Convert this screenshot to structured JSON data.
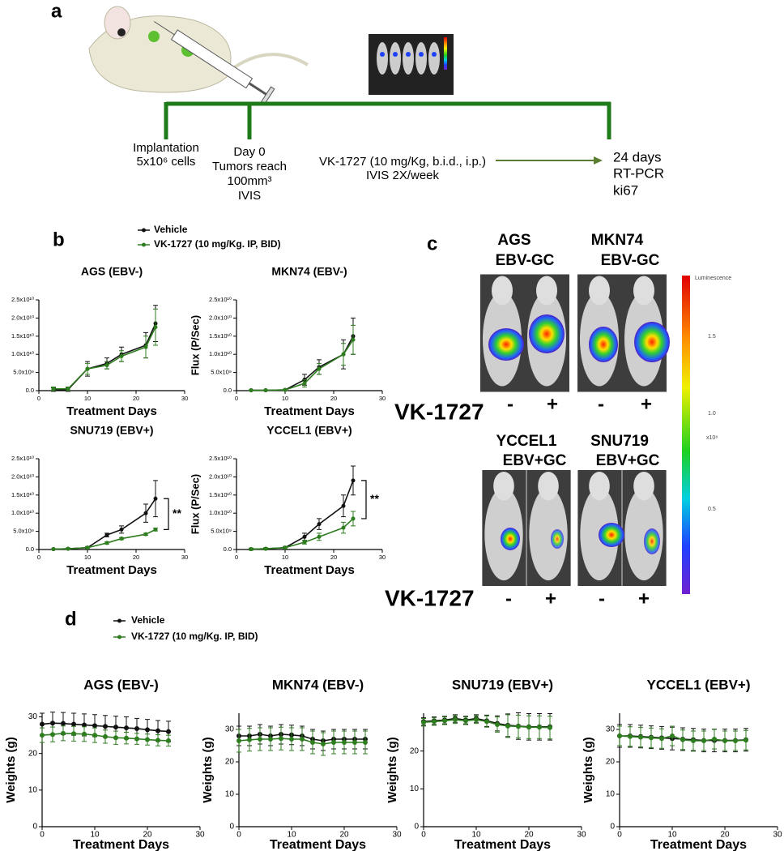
{
  "panel_labels": [
    "a",
    "b",
    "c",
    "d"
  ],
  "timeline": {
    "implantation": [
      "Implantation",
      "5x10⁶ cells"
    ],
    "day0": [
      "Day 0",
      "Tumors reach",
      "100mm³",
      "IVIS"
    ],
    "treatment": [
      "VK-1727 (10 mg/Kg, b.i.d., i.p.)",
      "IVIS 2X/week"
    ],
    "endpoint": [
      "24 days",
      "RT-PCR",
      "ki67"
    ]
  },
  "imaging": {
    "groups": [
      {
        "line1": "AGS",
        "line2": "EBV-GC"
      },
      {
        "line1": "MKN74",
        "line2": "EBV-GC"
      },
      {
        "line1": "YCCEL1",
        "line2": "EBV+GC"
      },
      {
        "line1": "SNU719",
        "line2": "EBV+GC"
      }
    ],
    "treatment_label": "VK-1727",
    "signs": [
      "-",
      "+"
    ],
    "colorbar": {
      "title": "Luminescence",
      "ticks": [
        "1.5",
        "1.0",
        "0.5"
      ],
      "unit": "x10⁸"
    }
  },
  "chart_data": [
    {
      "type": "line",
      "title": "AGS (EBV-)",
      "xlabel": "Treatment Days",
      "x": [
        3,
        6,
        10,
        14,
        17,
        22,
        24
      ],
      "series": [
        {
          "name": "Vehicle",
          "color": "#111111",
          "values": [
            300000000.0,
            300000000.0,
            6000000000.0,
            7500000000.0,
            10000000000.0,
            12500000000.0,
            18500000000.0
          ],
          "errors": [
            500000000.0,
            500000000.0,
            2000000000.0,
            1500000000.0,
            2000000000.0,
            3500000000.0,
            5000000000.0
          ]
        },
        {
          "name": "VK-1727 (10 mg/Kg. IP, BID)",
          "color": "#2e7d1f",
          "values": [
            500000000.0,
            500000000.0,
            6000000000.0,
            7000000000.0,
            9500000000.0,
            12000000000.0,
            17500000000.0
          ],
          "errors": [
            500000000.0,
            500000000.0,
            1500000000.0,
            1000000000.0,
            1500000000.0,
            3000000000.0,
            5000000000.0
          ]
        }
      ],
      "xlim": [
        0,
        30
      ],
      "xticks": [
        0,
        10,
        20,
        30
      ],
      "ylim": [
        0,
        25000000000.0
      ],
      "yticks": [
        {
          "value": 0,
          "label": "0.0"
        },
        {
          "value": 5000000000.0,
          "label": "5.0x10⁹"
        },
        {
          "value": 10000000000.0,
          "label": "1.0x10¹⁰"
        },
        {
          "value": 15000000000.0,
          "label": "1.5x10¹⁰"
        },
        {
          "value": 20000000000.0,
          "label": "2.0x10¹⁰"
        },
        {
          "value": 25000000000.0,
          "label": "2.5x10¹⁰"
        }
      ]
    },
    {
      "type": "line",
      "title": "MKN74 (EBV-)",
      "xlabel": "Treatment Days",
      "ylabel": "Flux (P/Sec)",
      "x": [
        3,
        6,
        10,
        14,
        17,
        22,
        24
      ],
      "series": [
        {
          "name": "Vehicle",
          "color": "#111111",
          "values": [
            100000000.0,
            100000000.0,
            200000000.0,
            3000000000.0,
            6500000000.0,
            10000000000.0,
            15000000000.0
          ],
          "errors": [
            100000000.0,
            100000000.0,
            200000000.0,
            1500000000.0,
            2000000000.0,
            4000000000.0,
            5000000000.0
          ]
        },
        {
          "name": "VK-1727 (10 mg/Kg. IP, BID)",
          "color": "#2e7d1f",
          "values": [
            100000000.0,
            100000000.0,
            200000000.0,
            2000000000.0,
            6000000000.0,
            10000000000.0,
            14000000000.0
          ],
          "errors": [
            100000000.0,
            100000000.0,
            200000000.0,
            1000000000.0,
            1500000000.0,
            3000000000.0,
            4000000000.0
          ]
        }
      ],
      "xlim": [
        0,
        30
      ],
      "xticks": [
        0,
        10,
        20,
        30
      ],
      "ylim": [
        0,
        25000000000.0
      ],
      "yticks": [
        {
          "value": 0,
          "label": "0.0"
        },
        {
          "value": 5000000000.0,
          "label": "5.0x10⁹"
        },
        {
          "value": 10000000000.0,
          "label": "1.0x10¹⁰"
        },
        {
          "value": 15000000000.0,
          "label": "1.5x10¹⁰"
        },
        {
          "value": 20000000000.0,
          "label": "2.0x10¹⁰"
        },
        {
          "value": 25000000000.0,
          "label": "2.5x10¹⁰"
        }
      ]
    },
    {
      "type": "line",
      "title": "SNU719 (EBV+)",
      "xlabel": "Treatment Days",
      "annotation": "**",
      "x": [
        3,
        6,
        10,
        14,
        17,
        22,
        24
      ],
      "series": [
        {
          "name": "Vehicle",
          "color": "#111111",
          "values": [
            100000000.0,
            200000000.0,
            500000000.0,
            4000000000.0,
            5500000000.0,
            10000000000.0,
            14000000000.0
          ],
          "errors": [
            100000000.0,
            200000000.0,
            300000000.0,
            500000000.0,
            1000000000.0,
            2500000000.0,
            5000000000.0
          ]
        },
        {
          "name": "VK-1727 (10 mg/Kg. IP, BID)",
          "color": "#2e7d1f",
          "values": [
            100000000.0,
            200000000.0,
            500000000.0,
            1800000000.0,
            3000000000.0,
            4200000000.0,
            5500000000.0
          ],
          "errors": [
            100000000.0,
            200000000.0,
            300000000.0,
            300000000.0,
            300000000.0,
            300000000.0,
            400000000.0
          ]
        }
      ],
      "xlim": [
        0,
        30
      ],
      "xticks": [
        0,
        10,
        20,
        30
      ],
      "ylim": [
        0,
        25000000000.0
      ],
      "yticks": [
        {
          "value": 0,
          "label": "0.0"
        },
        {
          "value": 5000000000.0,
          "label": "5.0x10⁹"
        },
        {
          "value": 10000000000.0,
          "label": "1.0x10¹⁰"
        },
        {
          "value": 15000000000.0,
          "label": "1.5x10¹⁰"
        },
        {
          "value": 20000000000.0,
          "label": "2.0x10¹⁰"
        },
        {
          "value": 25000000000.0,
          "label": "2.5x10¹⁰"
        }
      ]
    },
    {
      "type": "line",
      "title": "YCCEL1 (EBV+)",
      "xlabel": "Treatment Days",
      "ylabel": "Flux (P/Sec)",
      "annotation": "**",
      "x": [
        3,
        6,
        10,
        14,
        17,
        22,
        24
      ],
      "series": [
        {
          "name": "Vehicle",
          "color": "#111111",
          "values": [
            100000000.0,
            200000000.0,
            500000000.0,
            3500000000.0,
            7000000000.0,
            12000000000.0,
            19000000000.0
          ],
          "errors": [
            100000000.0,
            200000000.0,
            300000000.0,
            1000000000.0,
            1500000000.0,
            3000000000.0,
            4000000000.0
          ]
        },
        {
          "name": "VK-1727 (10 mg/Kg. IP, BID)",
          "color": "#2e7d1f",
          "values": [
            100000000.0,
            200000000.0,
            500000000.0,
            2000000000.0,
            3500000000.0,
            6000000000.0,
            8500000000.0
          ],
          "errors": [
            300000000.0,
            300000000.0,
            300000000.0,
            500000000.0,
            1000000000.0,
            1500000000.0,
            2000000000.0
          ]
        }
      ],
      "xlim": [
        0,
        30
      ],
      "xticks": [
        0,
        10,
        20,
        30
      ],
      "ylim": [
        0,
        25000000000.0
      ],
      "yticks": [
        {
          "value": 0,
          "label": "0.0"
        },
        {
          "value": 5000000000.0,
          "label": "5.0x10⁹"
        },
        {
          "value": 10000000000.0,
          "label": "1.0x10¹⁰"
        },
        {
          "value": 15000000000.0,
          "label": "1.5x10¹⁰"
        },
        {
          "value": 20000000000.0,
          "label": "2.0x10¹⁰"
        },
        {
          "value": 25000000000.0,
          "label": "2.5x10¹⁰"
        }
      ]
    },
    {
      "type": "line",
      "title": "AGS (EBV-)",
      "xlabel": "Treatment Days",
      "ylabel": "Weights (g)",
      "x": [
        0,
        2,
        4,
        6,
        8,
        10,
        12,
        14,
        16,
        18,
        20,
        22,
        24
      ],
      "series": [
        {
          "name": "Vehicle",
          "color": "#111111",
          "values": [
            28,
            28.3,
            28.2,
            28,
            27.8,
            27.6,
            27.4,
            27.2,
            27,
            26.8,
            26.5,
            26.2,
            26
          ],
          "errors": [
            3,
            3,
            3,
            3,
            3,
            3,
            3,
            3,
            3,
            2.8,
            2.8,
            2.8,
            2.8
          ]
        },
        {
          "name": "VK-1727 (10 mg/Kg. IP, BID)",
          "color": "#2e7d1f",
          "values": [
            25,
            25.2,
            25.5,
            25.4,
            25.3,
            25,
            24.6,
            24.3,
            24.2,
            24,
            23.8,
            23.6,
            23.5
          ],
          "errors": [
            2,
            2,
            2,
            2,
            2,
            2,
            1.8,
            1.8,
            1.6,
            1.5,
            1.5,
            1.5,
            1.5
          ]
        }
      ],
      "xlim": [
        0,
        30
      ],
      "xticks": [
        0,
        10,
        20,
        30
      ],
      "ylim": [
        0,
        31
      ],
      "yticks": [
        0,
        10,
        20,
        30
      ]
    },
    {
      "type": "line",
      "title": "MKN74 (EBV-)",
      "xlabel": "Treatment Days",
      "ylabel": "Weights (g)",
      "x": [
        0,
        2,
        4,
        6,
        8,
        10,
        12,
        14,
        16,
        18,
        20,
        22,
        24
      ],
      "series": [
        {
          "name": "Vehicle",
          "color": "#111111",
          "values": [
            28,
            28,
            28.5,
            28,
            28.5,
            28.3,
            28,
            27,
            26.5,
            27,
            27,
            27,
            27
          ],
          "errors": [
            3,
            3,
            3,
            3,
            3,
            3,
            3,
            3,
            3,
            3,
            3,
            3,
            3
          ]
        },
        {
          "name": "VK-1727 (10 mg/Kg. IP, BID)",
          "color": "#2e7d1f",
          "values": [
            26.5,
            26.8,
            27,
            27,
            27.2,
            27,
            27,
            26,
            25.5,
            26,
            26,
            26,
            26
          ],
          "errors": [
            3.5,
            3.5,
            3.5,
            3.5,
            3.5,
            3.5,
            3.5,
            3.5,
            3.5,
            3.5,
            3.5,
            3.5,
            3.5
          ]
        }
      ],
      "xlim": [
        0,
        30
      ],
      "xticks": [
        0,
        10,
        20,
        30
      ],
      "ylim": [
        0,
        35
      ],
      "yticks": [
        0,
        10,
        20,
        30
      ]
    },
    {
      "type": "line",
      "title": "SNU719 (EBV+)",
      "xlabel": "Treatment Days",
      "ylabel": "Weights (g)",
      "x": [
        0,
        2,
        4,
        6,
        8,
        10,
        12,
        14,
        16,
        18,
        20,
        22,
        24
      ],
      "series": [
        {
          "name": "Vehicle",
          "color": "#111111",
          "values": [
            27.8,
            28,
            28.2,
            28.6,
            28.2,
            28.6,
            28,
            27.3,
            26.8,
            26.6,
            26.4,
            26.4,
            26.4
          ],
          "errors": [
            1,
            1,
            1,
            1,
            1,
            1,
            1.5,
            2,
            3,
            3.5,
            3.5,
            3.5,
            3.5
          ]
        },
        {
          "name": "VK-1727 (10 mg/Kg. IP, BID)",
          "color": "#2e7d1f",
          "values": [
            27.6,
            27.8,
            28,
            28.3,
            28,
            28.3,
            27.8,
            27,
            26.6,
            26.5,
            26.3,
            26.3,
            26.2
          ],
          "errors": [
            1,
            1,
            1,
            1,
            1,
            1,
            1.5,
            2,
            3,
            3,
            3,
            3,
            3
          ]
        }
      ],
      "xlim": [
        0,
        30
      ],
      "xticks": [
        0,
        10,
        20,
        30
      ],
      "ylim": [
        0,
        30
      ],
      "yticks": [
        0,
        10,
        20
      ]
    },
    {
      "type": "line",
      "title": "YCCEL1 (EBV+)",
      "xlabel": "Treatment Days",
      "ylabel": "Weights (g)",
      "x": [
        0,
        2,
        4,
        6,
        8,
        10,
        12,
        14,
        16,
        18,
        20,
        22,
        24
      ],
      "series": [
        {
          "name": "Vehicle",
          "color": "#111111",
          "values": [
            28,
            28,
            27.8,
            27.6,
            27.4,
            27.2,
            27,
            26.8,
            26.6,
            26.6,
            26.6,
            26.6,
            26.8
          ],
          "errors": [
            3.5,
            3.5,
            3.5,
            3.5,
            3.5,
            3.5,
            3.5,
            3.5,
            3.5,
            3.5,
            3.5,
            3.5,
            3.5
          ]
        },
        {
          "name": "VK-1727 (10 mg/Kg. IP, BID)",
          "color": "#2e7d1f",
          "values": [
            28,
            27.8,
            27.6,
            27.4,
            27.2,
            28,
            26.8,
            26.5,
            26.5,
            27,
            26.5,
            26.5,
            26.7
          ],
          "errors": [
            3,
            3,
            3,
            3,
            3,
            3,
            3,
            3,
            3,
            3,
            3,
            3,
            3
          ]
        }
      ],
      "xlim": [
        0,
        30
      ],
      "xticks": [
        0,
        10,
        20,
        30
      ],
      "ylim": [
        0,
        35
      ],
      "yticks": [
        0,
        10,
        20,
        30
      ]
    }
  ]
}
